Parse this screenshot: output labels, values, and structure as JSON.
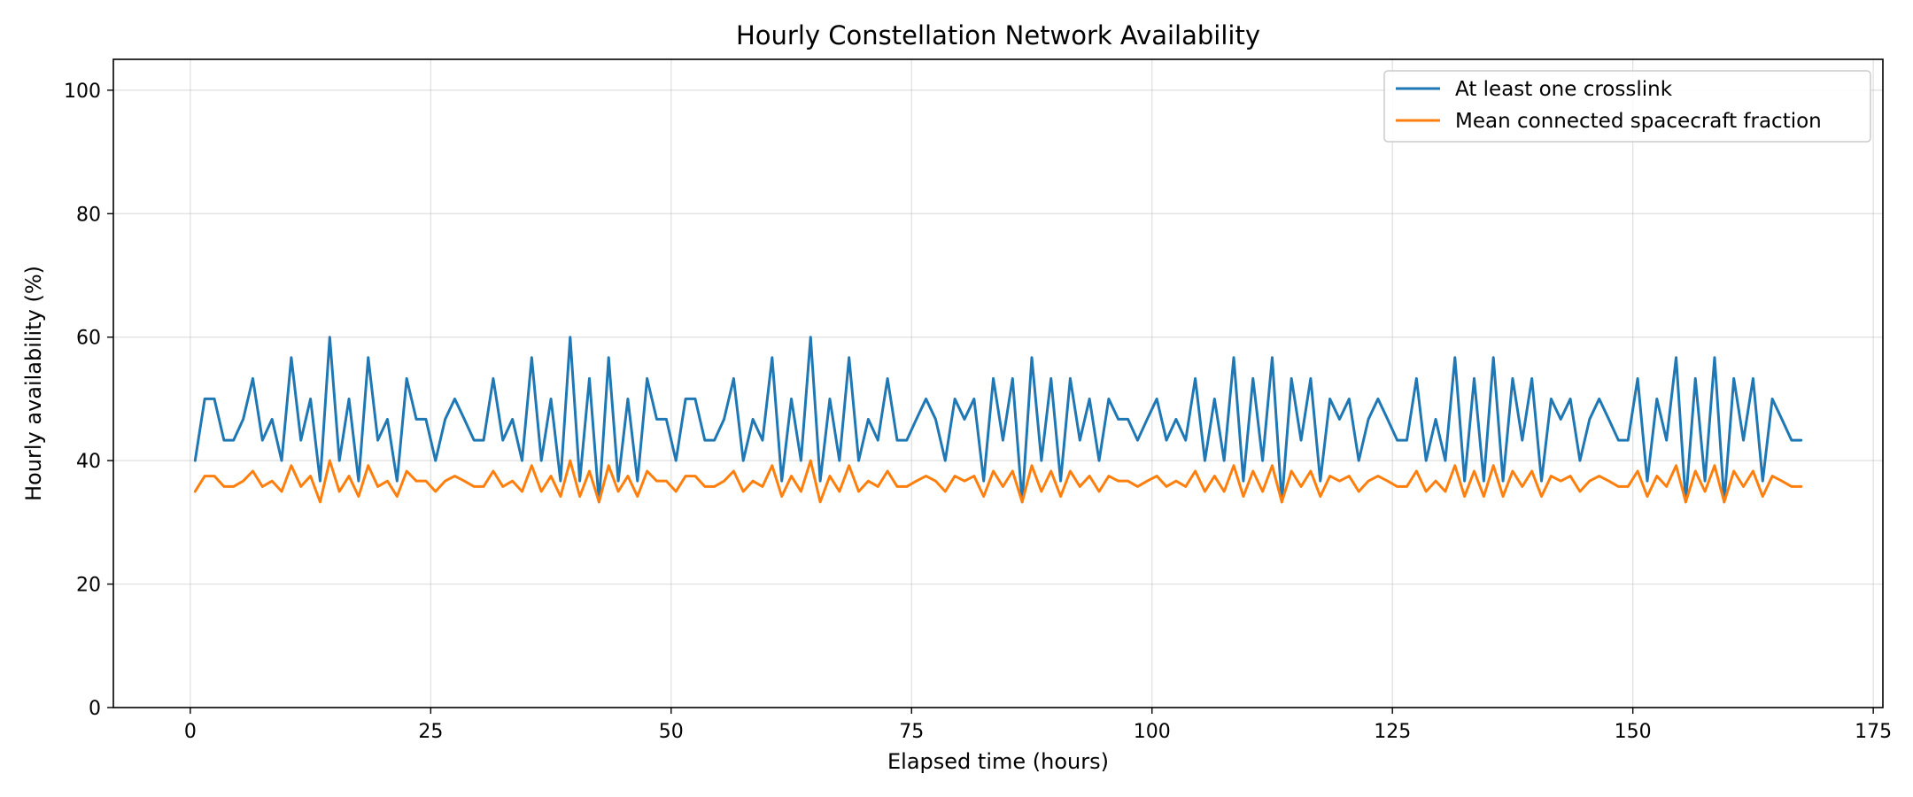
{
  "chart_data": {
    "type": "line",
    "title": "Hourly Constellation Network Availability",
    "xlabel": "Elapsed time (hours)",
    "ylabel": "Hourly availability (%)",
    "xlim": [
      -8,
      176
    ],
    "ylim": [
      0,
      105
    ],
    "xticks": [
      0,
      25,
      50,
      75,
      100,
      125,
      150,
      175
    ],
    "yticks": [
      0,
      20,
      40,
      60,
      80,
      100
    ],
    "grid": true,
    "legend_position": "top-right",
    "x_start": 0.5,
    "x_step": 1,
    "series": [
      {
        "name": "At least one crosslink",
        "color": "#1f77b4",
        "values": [
          40,
          50,
          50,
          43.3,
          43.3,
          46.7,
          53.3,
          43.3,
          46.7,
          40,
          56.7,
          43.3,
          50,
          36.7,
          60,
          40,
          50,
          36.7,
          56.7,
          43.3,
          46.7,
          36.7,
          53.3,
          46.7,
          46.7,
          40,
          46.7,
          50,
          46.7,
          43.3,
          43.3,
          53.3,
          43.3,
          46.7,
          40,
          56.7,
          40,
          50,
          36.7,
          60,
          36.7,
          53.3,
          33.3,
          56.7,
          36.7,
          50,
          36.7,
          53.3,
          46.7,
          46.7,
          40,
          50,
          50,
          43.3,
          43.3,
          46.7,
          53.3,
          40,
          46.7,
          43.3,
          56.7,
          36.7,
          50,
          40,
          60,
          36.7,
          50,
          40,
          56.7,
          40,
          46.7,
          43.3,
          53.3,
          43.3,
          43.3,
          46.7,
          50,
          46.7,
          40,
          50,
          46.7,
          50,
          36.7,
          53.3,
          43.3,
          53.3,
          33.3,
          56.7,
          40,
          53.3,
          36.7,
          53.3,
          43.3,
          50,
          40,
          50,
          46.7,
          46.7,
          43.3,
          46.7,
          50,
          43.3,
          46.7,
          43.3,
          53.3,
          40,
          50,
          40,
          56.7,
          36.7,
          53.3,
          40,
          56.7,
          33.3,
          53.3,
          43.3,
          53.3,
          36.7,
          50,
          46.7,
          50,
          40,
          46.7,
          50,
          46.7,
          43.3,
          43.3,
          53.3,
          40,
          46.7,
          40,
          56.7,
          36.7,
          53.3,
          36.7,
          56.7,
          36.7,
          53.3,
          43.3,
          53.3,
          36.7,
          50,
          46.7,
          50,
          40,
          46.7,
          50,
          46.7,
          43.3,
          43.3,
          53.3,
          36.7,
          50,
          43.3,
          56.7,
          33.3,
          53.3,
          36.7,
          56.7,
          33.3,
          53.3,
          43.3,
          53.3,
          36.7,
          50,
          46.7,
          43.3,
          43.3
        ]
      },
      {
        "name": "Mean connected spacecraft fraction",
        "color": "#ff7f0e",
        "values": [
          35,
          37.5,
          37.5,
          35.8,
          35.8,
          36.7,
          38.3,
          35.8,
          36.7,
          35,
          39.2,
          35.8,
          37.5,
          33.3,
          40,
          35,
          37.5,
          34.2,
          39.2,
          35.8,
          36.7,
          34.2,
          38.3,
          36.7,
          36.7,
          35,
          36.7,
          37.5,
          36.7,
          35.8,
          35.8,
          38.3,
          35.8,
          36.7,
          35,
          39.2,
          35,
          37.5,
          34.2,
          40,
          34.2,
          38.3,
          33.3,
          39.2,
          35,
          37.5,
          34.2,
          38.3,
          36.7,
          36.7,
          35,
          37.5,
          37.5,
          35.8,
          35.8,
          36.7,
          38.3,
          35,
          36.7,
          35.8,
          39.2,
          34.2,
          37.5,
          35,
          40,
          33.3,
          37.5,
          35,
          39.2,
          35,
          36.7,
          35.8,
          38.3,
          35.8,
          35.8,
          36.7,
          37.5,
          36.7,
          35,
          37.5,
          36.7,
          37.5,
          34.2,
          38.3,
          35.8,
          38.3,
          33.3,
          39.2,
          35,
          38.3,
          34.2,
          38.3,
          35.8,
          37.5,
          35,
          37.5,
          36.7,
          36.7,
          35.8,
          36.7,
          37.5,
          35.8,
          36.7,
          35.8,
          38.3,
          35,
          37.5,
          35,
          39.2,
          34.2,
          38.3,
          35,
          39.2,
          33.3,
          38.3,
          35.8,
          38.3,
          34.2,
          37.5,
          36.7,
          37.5,
          35,
          36.7,
          37.5,
          36.7,
          35.8,
          35.8,
          38.3,
          35,
          36.7,
          35,
          39.2,
          34.2,
          38.3,
          34.2,
          39.2,
          34.2,
          38.3,
          35.8,
          38.3,
          34.2,
          37.5,
          36.7,
          37.5,
          35,
          36.7,
          37.5,
          36.7,
          35.8,
          35.8,
          38.3,
          34.2,
          37.5,
          35.8,
          39.2,
          33.3,
          38.3,
          35,
          39.2,
          33.3,
          38.3,
          35.8,
          38.3,
          34.2,
          37.5,
          36.7,
          35.8,
          35.8
        ]
      }
    ]
  }
}
